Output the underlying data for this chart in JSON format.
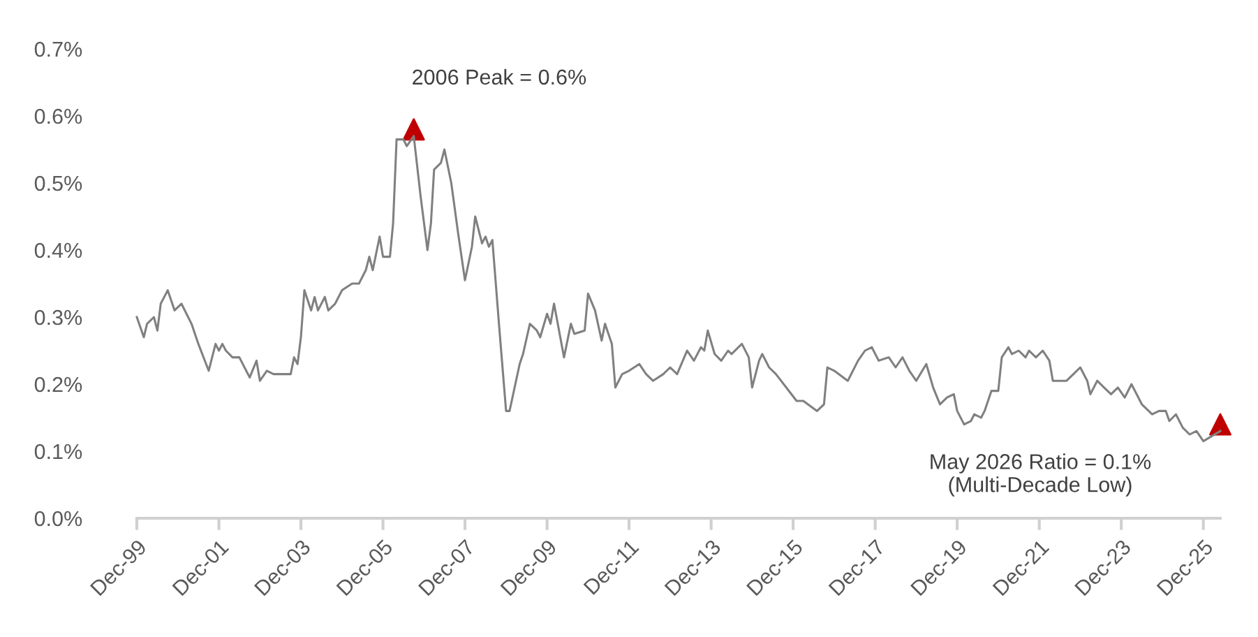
{
  "chart_data": {
    "type": "line",
    "x": [
      "1999-12",
      "2000-02",
      "2000-03",
      "2000-05",
      "2000-06",
      "2000-07",
      "2000-09",
      "2000-11",
      "2001-01",
      "2001-04",
      "2001-06",
      "2001-09",
      "2001-11",
      "2001-12",
      "2002-01",
      "2002-02",
      "2002-04",
      "2002-06",
      "2002-08",
      "2002-09",
      "2002-11",
      "2002-12",
      "2003-02",
      "2003-04",
      "2003-07",
      "2003-09",
      "2003-10",
      "2003-11",
      "2003-12",
      "2004-01",
      "2004-03",
      "2004-04",
      "2004-05",
      "2004-07",
      "2004-08",
      "2004-10",
      "2004-12",
      "2005-03",
      "2005-05",
      "2005-07",
      "2005-08",
      "2005-09",
      "2005-11",
      "2005-12",
      "2006-02",
      "2006-03",
      "2006-04",
      "2006-06",
      "2006-07",
      "2006-09",
      "2006-11",
      "2007-01",
      "2007-02",
      "2007-03",
      "2007-05",
      "2007-06",
      "2007-08",
      "2007-10",
      "2007-12",
      "2008-02",
      "2008-03",
      "2008-05",
      "2008-06",
      "2008-07",
      "2008-08",
      "2008-10",
      "2008-12",
      "2009-01",
      "2009-04",
      "2009-05",
      "2009-07",
      "2009-09",
      "2009-10",
      "2009-12",
      "2010-01",
      "2010-02",
      "2010-05",
      "2010-07",
      "2010-08",
      "2010-11",
      "2010-12",
      "2011-02",
      "2011-04",
      "2011-05",
      "2011-07",
      "2011-08",
      "2011-10",
      "2011-12",
      "2012-03",
      "2012-05",
      "2012-07",
      "2012-10",
      "2012-12",
      "2013-02",
      "2013-05",
      "2013-07",
      "2013-09",
      "2013-10",
      "2013-11",
      "2014-01",
      "2014-03",
      "2014-05",
      "2014-06",
      "2014-08",
      "2014-09",
      "2014-11",
      "2014-12",
      "2015-02",
      "2015-03",
      "2015-05",
      "2015-07",
      "2015-10",
      "2016-01",
      "2016-03",
      "2016-07",
      "2016-09",
      "2016-10",
      "2016-12",
      "2017-04",
      "2017-07",
      "2017-09",
      "2017-11",
      "2018-01",
      "2018-04",
      "2018-06",
      "2018-08",
      "2018-10",
      "2018-12",
      "2019-03",
      "2019-05",
      "2019-07",
      "2019-09",
      "2019-11",
      "2019-12",
      "2020-02",
      "2020-04",
      "2020-05",
      "2020-07",
      "2020-08",
      "2020-10",
      "2020-12",
      "2021-01",
      "2021-03",
      "2021-04",
      "2021-06",
      "2021-08",
      "2021-09",
      "2021-11",
      "2022-01",
      "2022-03",
      "2022-04",
      "2022-08",
      "2022-10",
      "2022-12",
      "2023-02",
      "2023-03",
      "2023-05",
      "2023-07",
      "2023-09",
      "2023-11",
      "2024-01",
      "2024-03",
      "2024-06",
      "2024-09",
      "2024-11",
      "2025-01",
      "2025-02",
      "2025-04",
      "2025-06",
      "2025-08",
      "2025-10",
      "2025-12",
      "2026-05"
    ],
    "series": [
      {
        "color": "#808080",
        "marker": "none",
        "values": [
          0.3,
          0.27,
          0.29,
          0.3,
          0.28,
          0.32,
          0.34,
          0.31,
          0.32,
          0.29,
          0.26,
          0.22,
          0.26,
          0.25,
          0.26,
          0.25,
          0.24,
          0.24,
          0.22,
          0.21,
          0.235,
          0.205,
          0.22,
          0.215,
          0.215,
          0.215,
          0.24,
          0.23,
          0.27,
          0.34,
          0.31,
          0.33,
          0.31,
          0.33,
          0.31,
          0.32,
          0.34,
          0.35,
          0.35,
          0.37,
          0.39,
          0.37,
          0.42,
          0.39,
          0.39,
          0.44,
          0.565,
          0.565,
          0.555,
          0.57,
          0.48,
          0.4,
          0.44,
          0.52,
          0.53,
          0.55,
          0.5,
          0.425,
          0.355,
          0.405,
          0.45,
          0.41,
          0.42,
          0.405,
          0.415,
          0.285,
          0.16,
          0.16,
          0.23,
          0.245,
          0.29,
          0.28,
          0.27,
          0.305,
          0.29,
          0.32,
          0.24,
          0.29,
          0.275,
          0.28,
          0.335,
          0.31,
          0.265,
          0.29,
          0.26,
          0.195,
          0.215,
          0.22,
          0.23,
          0.215,
          0.205,
          0.215,
          0.225,
          0.215,
          0.25,
          0.235,
          0.255,
          0.25,
          0.28,
          0.245,
          0.235,
          0.25,
          0.245,
          0.255,
          0.26,
          0.24,
          0.195,
          0.235,
          0.245,
          0.225,
          0.215,
          0.195,
          0.175,
          0.175,
          0.16,
          0.17,
          0.225,
          0.22,
          0.205,
          0.235,
          0.25,
          0.255,
          0.235,
          0.24,
          0.225,
          0.24,
          0.22,
          0.205,
          0.23,
          0.195,
          0.17,
          0.18,
          0.185,
          0.16,
          0.14,
          0.145,
          0.155,
          0.15,
          0.16,
          0.19,
          0.19,
          0.24,
          0.255,
          0.245,
          0.25,
          0.24,
          0.25,
          0.24,
          0.25,
          0.235,
          0.205,
          0.205,
          0.215,
          0.225,
          0.205,
          0.185,
          0.205,
          0.195,
          0.185,
          0.195,
          0.18,
          0.2,
          0.17,
          0.155,
          0.16,
          0.16,
          0.145,
          0.155,
          0.135,
          0.125,
          0.13,
          0.115,
          0.13
        ]
      },
      {
        "type": "scatter",
        "color": "#c00000",
        "marker": "triangle",
        "x": [
          "2006-09",
          "2026-05"
        ],
        "values": [
          0.58,
          0.14
        ]
      }
    ],
    "xlim": [
      "1999-12",
      "2026-05"
    ],
    "xticks": [
      {
        "value": "1999-12",
        "label": "Dec-99"
      },
      {
        "value": "2001-12",
        "label": "Dec-01"
      },
      {
        "value": "2003-12",
        "label": "Dec-03"
      },
      {
        "value": "2005-12",
        "label": "Dec-05"
      },
      {
        "value": "2007-12",
        "label": "Dec-07"
      },
      {
        "value": "2009-12",
        "label": "Dec-09"
      },
      {
        "value": "2011-12",
        "label": "Dec-11"
      },
      {
        "value": "2013-12",
        "label": "Dec-13"
      },
      {
        "value": "2015-12",
        "label": "Dec-15"
      },
      {
        "value": "2017-12",
        "label": "Dec-17"
      },
      {
        "value": "2019-12",
        "label": "Dec-19"
      },
      {
        "value": "2021-12",
        "label": "Dec-21"
      },
      {
        "value": "2023-12",
        "label": "Dec-23"
      },
      {
        "value": "2025-12",
        "label": "Dec-25"
      }
    ],
    "ylim": [
      0,
      0.7
    ],
    "yticks": [
      {
        "value": 0,
        "label": "0.0%"
      },
      {
        "value": 0.1,
        "label": "0.1%"
      },
      {
        "value": 0.2,
        "label": "0.2%"
      },
      {
        "value": 0.3,
        "label": "0.3%"
      },
      {
        "value": 0.4,
        "label": "0.4%"
      },
      {
        "value": 0.5,
        "label": "0.5%"
      },
      {
        "value": 0.6,
        "label": "0.6%"
      },
      {
        "value": 0.7,
        "label": "0.7%"
      }
    ],
    "grid": false,
    "annotations": [
      {
        "text": "2006 Peak = 0.6%",
        "x": "2006-09",
        "y": 0.58
      },
      "May 2026 Ratio = 0.1%\n(Multi-Decade Low)"
    ]
  }
}
